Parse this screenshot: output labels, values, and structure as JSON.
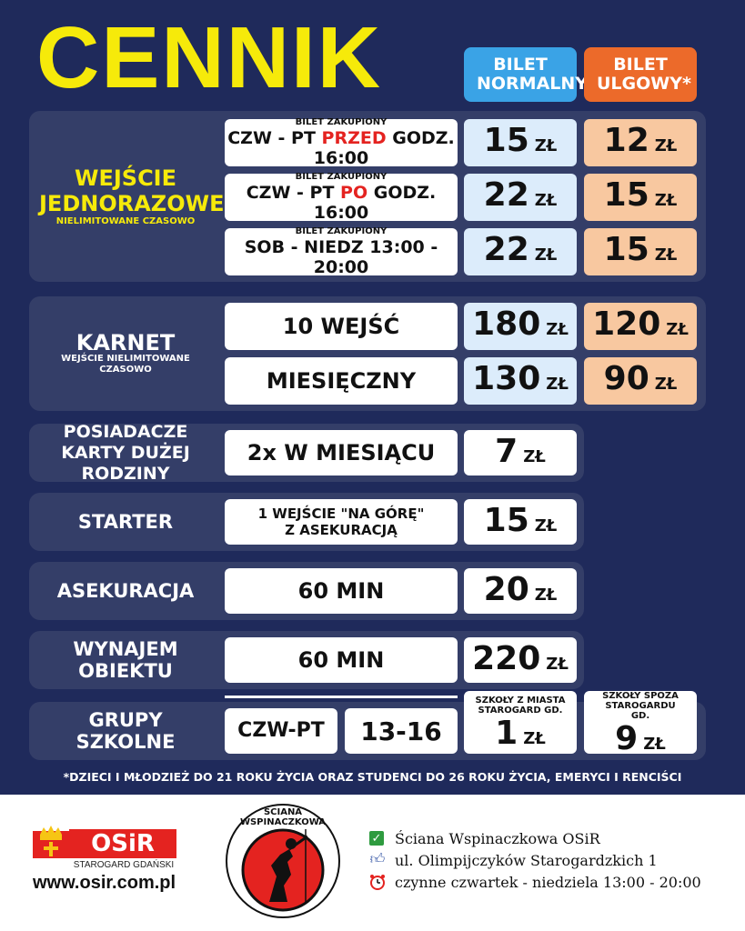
{
  "title": "CENNIK",
  "headers": {
    "normal": "BILET NORMALNY",
    "reduced": "BILET ULGOWY*",
    "normal_color": "#3aa3e6",
    "reduced_color": "#ec6a2a"
  },
  "currency": "ZŁ",
  "single": {
    "title": "WEJŚCIE JEDNORAZOWE",
    "subtitle": "NIELIMITOWANE CZASOWO",
    "rows": [
      {
        "small": "BILET ZAKUPIONY",
        "pre": "CZW - PT ",
        "hl": "PRZED",
        "post": " GODZ. 16:00",
        "normal": "15",
        "reduced": "12"
      },
      {
        "small": "BILET ZAKUPIONY",
        "pre": "CZW - PT ",
        "hl": "PO",
        "post": " GODZ. 16:00",
        "normal": "22",
        "reduced": "15"
      },
      {
        "small": "BILET ZAKUPIONY",
        "pre": "SOB - NIEDZ  13:00 - 20:00",
        "hl": "",
        "post": "",
        "normal": "22",
        "reduced": "15"
      }
    ]
  },
  "pass": {
    "title": "KARNET",
    "subtitle": "WEJŚCIE NIELIMITOWANE CZASOWO",
    "rows": [
      {
        "label": "10 WEJŚĆ",
        "normal": "180",
        "reduced": "120"
      },
      {
        "label": "MIESIĘCZNY",
        "normal": "130",
        "reduced": "90"
      }
    ]
  },
  "family": {
    "title": "POSIADACZE KARTY DUŻEJ RODZINY",
    "label": "2x W MIESIĄCU",
    "price": "7"
  },
  "starter": {
    "title": "STARTER",
    "label_line1": "1 WEJŚCIE \"NA GÓRĘ\"",
    "label_line2": "Z ASEKURACJĄ",
    "price": "15"
  },
  "belay": {
    "title": "ASEKURACJA",
    "label": "60 MIN",
    "price": "20"
  },
  "rental": {
    "title": "WYNAJEM OBIEKTU",
    "label": "60 MIN",
    "price": "220"
  },
  "schools": {
    "title": "GRUPY SZKOLNE",
    "days": "CZW-PT",
    "hours": "13-16",
    "local_label": "SZKOŁY Z MIASTA STAROGARD GD.",
    "local_price": "1",
    "outside_label": "SZKOŁY SPOZA STAROGARDU GD.",
    "outside_price": "9"
  },
  "footnote": "*DZIECI I MŁODZIEŻ DO 21 ROKU ŻYCIA ORAZ STUDENCI DO 26 ROKU ŻYCIA, EMERYCI I RENCIŚCI",
  "footer": {
    "osir_logo": "OSiR",
    "osir_sub": "STAROGARD GDAŃSKI",
    "website": "www.osir.com.pl",
    "wall_logo_text": "ŚCIANA WSPINACZKOWA",
    "info": [
      {
        "icon": "check-icon",
        "text": "Ściana Wspinaczkowa OSiR"
      },
      {
        "icon": "thumbs-up-icon",
        "text": "ul. Olimpijczyków Starogardzkich 1"
      },
      {
        "icon": "alarm-clock-icon",
        "text": "czynne czwartek - niedziela 13:00 - 20:00"
      }
    ]
  }
}
